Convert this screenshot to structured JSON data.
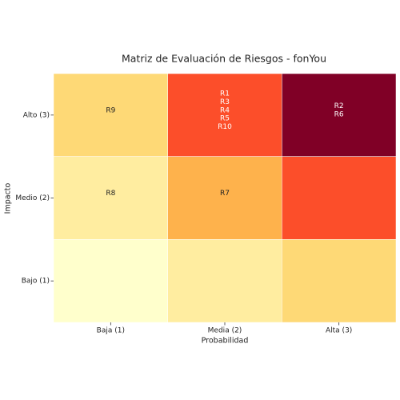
{
  "chart_data": {
    "type": "heatmap",
    "title": "Matriz de Evaluación de Riesgos - fonYou",
    "x_label": "Probabilidad",
    "y_label": "Impacto",
    "x_categories": [
      "Baja (1)",
      "Media (2)",
      "Alta (3)"
    ],
    "y_categories": [
      "Alto (3)",
      "Medio (2)",
      "Bajo (1)"
    ],
    "values": [
      [
        3,
        6,
        9
      ],
      [
        2,
        4,
        6
      ],
      [
        1,
        2,
        3
      ]
    ],
    "cell_labels": [
      [
        [
          "R9"
        ],
        [
          "R1",
          "R3",
          "R4",
          "R5",
          "R10"
        ],
        [
          "R2",
          "R6"
        ]
      ],
      [
        [
          "R8"
        ],
        [
          "R7"
        ],
        []
      ],
      [
        [],
        [],
        []
      ]
    ],
    "colormap": [
      "#ffffcc",
      "#ffeda0",
      "#fed976",
      "#feb24c",
      "#fd8d3c",
      "#fc4e2a",
      "#e31a1c",
      "#bd0026",
      "#800026"
    ]
  }
}
